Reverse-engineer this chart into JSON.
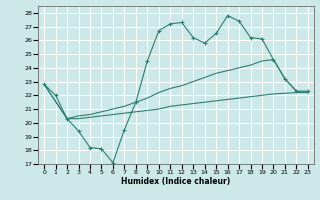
{
  "xlabel": "Humidex (Indice chaleur)",
  "bg_color": "#cce8e8",
  "line_color": "#2e7d72",
  "grid_color": "#ffffff",
  "xlim": [
    -0.5,
    23.5
  ],
  "ylim": [
    17,
    28.5
  ],
  "yticks": [
    17,
    18,
    19,
    20,
    21,
    22,
    23,
    24,
    25,
    26,
    27,
    28
  ],
  "xticks": [
    0,
    1,
    2,
    3,
    4,
    5,
    6,
    7,
    8,
    9,
    10,
    11,
    12,
    13,
    14,
    15,
    16,
    17,
    18,
    19,
    20,
    21,
    22,
    23
  ],
  "line1_x": [
    0,
    1,
    2,
    3,
    4,
    5,
    6,
    7,
    8,
    9,
    10,
    11,
    12,
    13,
    14,
    15,
    16,
    17,
    18,
    19,
    20,
    21,
    22,
    23
  ],
  "line1_y": [
    22.8,
    22.0,
    20.3,
    19.4,
    18.2,
    18.1,
    17.1,
    19.5,
    21.5,
    24.5,
    26.7,
    27.2,
    27.3,
    26.2,
    25.8,
    26.5,
    27.8,
    27.4,
    26.2,
    26.1,
    24.6,
    23.2,
    22.3,
    22.3
  ],
  "line2_x": [
    0,
    2,
    3,
    4,
    5,
    6,
    7,
    8,
    9,
    10,
    11,
    12,
    13,
    14,
    15,
    16,
    17,
    18,
    19,
    20,
    21,
    22,
    23
  ],
  "line2_y": [
    22.8,
    20.3,
    20.5,
    20.6,
    20.8,
    21.0,
    21.2,
    21.5,
    21.8,
    22.2,
    22.5,
    22.7,
    23.0,
    23.3,
    23.6,
    23.8,
    24.0,
    24.2,
    24.5,
    24.6,
    23.2,
    22.3,
    22.2
  ],
  "line3_x": [
    0,
    2,
    3,
    4,
    5,
    6,
    7,
    8,
    9,
    10,
    11,
    12,
    13,
    14,
    15,
    16,
    17,
    18,
    19,
    20,
    21,
    22,
    23
  ],
  "line3_y": [
    22.8,
    20.3,
    20.3,
    20.4,
    20.5,
    20.6,
    20.7,
    20.8,
    20.9,
    21.0,
    21.2,
    21.3,
    21.4,
    21.5,
    21.6,
    21.7,
    21.8,
    21.9,
    22.0,
    22.1,
    22.15,
    22.2,
    22.2
  ]
}
